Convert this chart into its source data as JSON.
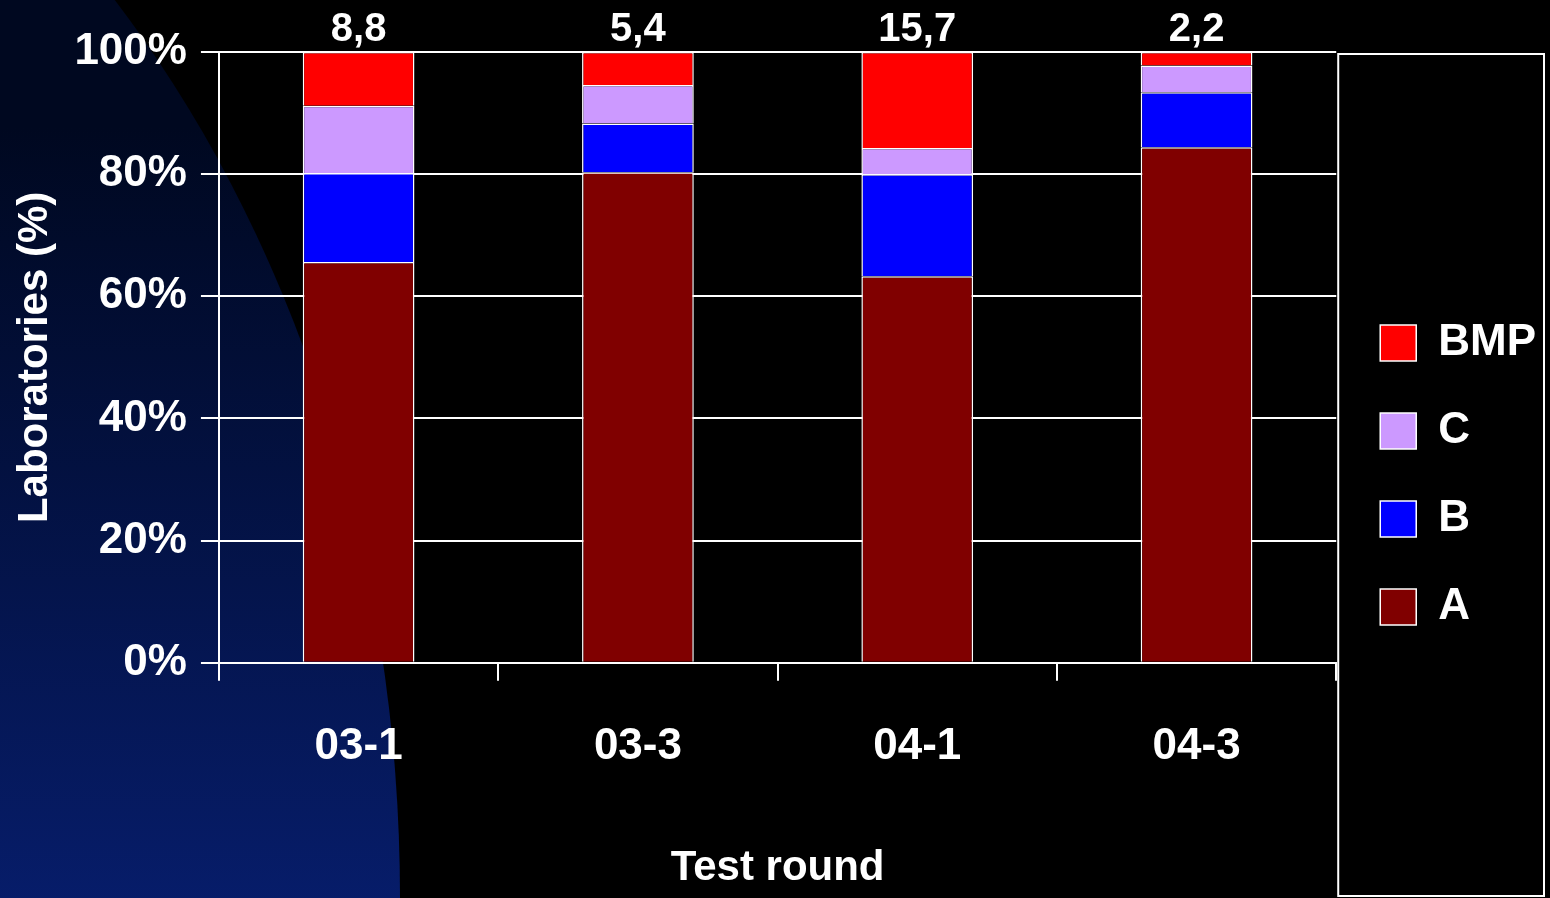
{
  "chart_data": {
    "type": "bar",
    "stacked": true,
    "xlabel": "Test round",
    "ylabel": "Laboratories (%)",
    "categories": [
      "03-1",
      "03-3",
      "04-1",
      "04-3"
    ],
    "series": [
      {
        "name": "A",
        "color": "#800000",
        "values": [
          65.6,
          80.3,
          63.3,
          84.4
        ]
      },
      {
        "name": "B",
        "color": "#0000ff",
        "values": [
          14.6,
          8.0,
          16.7,
          9.0
        ]
      },
      {
        "name": "C",
        "color": "#cc99ff",
        "values": [
          11.0,
          6.3,
          4.3,
          4.4
        ]
      },
      {
        "name": "BMP",
        "color": "#ff0000",
        "values": [
          8.8,
          5.4,
          15.7,
          2.2
        ],
        "value_labels": [
          "8,8",
          "5,4",
          "15,7",
          "2,2"
        ]
      }
    ],
    "ylim": [
      0,
      100
    ],
    "yticks": [
      {
        "value": 0,
        "label": "0%"
      },
      {
        "value": 20,
        "label": "20%"
      },
      {
        "value": 40,
        "label": "40%"
      },
      {
        "value": 60,
        "label": "60%"
      },
      {
        "value": 80,
        "label": "80%"
      },
      {
        "value": 100,
        "label": "100%"
      }
    ],
    "grid": "y",
    "legend": "right"
  }
}
